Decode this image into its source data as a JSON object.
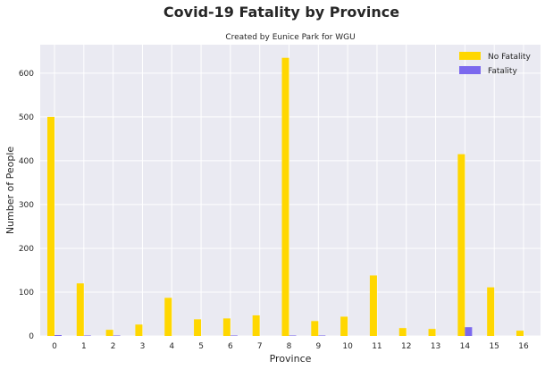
{
  "chart_data": {
    "type": "bar",
    "title": "Covid-19 Fatality by Province",
    "subtitle": "Created by Eunice Park for WGU",
    "xlabel": "Province",
    "ylabel": "Number of People",
    "categories": [
      "0",
      "1",
      "2",
      "3",
      "4",
      "5",
      "6",
      "7",
      "8",
      "9",
      "10",
      "11",
      "12",
      "13",
      "14",
      "15",
      "16"
    ],
    "series": [
      {
        "name": "No Fatality",
        "color": "#FFD700",
        "values": [
          500,
          120,
          14,
          26,
          87,
          38,
          40,
          47,
          635,
          34,
          44,
          138,
          18,
          16,
          415,
          111,
          12
        ]
      },
      {
        "name": "Fatality",
        "color": "#7B68EE",
        "values": [
          2,
          1,
          1,
          0,
          0,
          0,
          1,
          0,
          1,
          1,
          0,
          0,
          0,
          0,
          20,
          0,
          0
        ]
      }
    ],
    "ylim": [
      0,
      665
    ],
    "yticks": [
      0,
      100,
      200,
      300,
      400,
      500,
      600
    ],
    "grid": true,
    "background": "#EAEAF2",
    "legend_position": "top-right"
  }
}
